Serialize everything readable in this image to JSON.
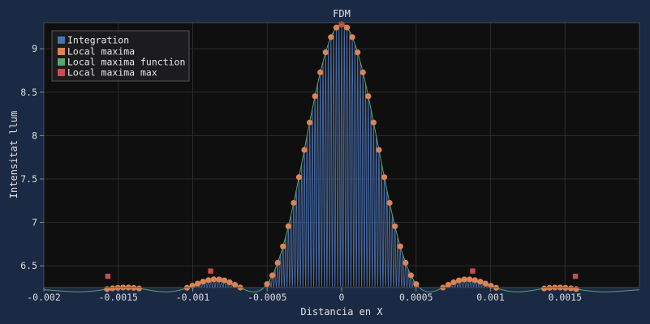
{
  "chart_data": {
    "type": "line",
    "title": "FDM",
    "xlabel": "Distancia en X",
    "ylabel": "Intensitat llum",
    "xlim": [
      -0.002,
      0.002
    ],
    "ylim": [
      6.25,
      9.3
    ],
    "x_ticks": [
      -0.002,
      -0.0015,
      -0.001,
      -0.0005,
      0,
      0.0005,
      0.001,
      0.0015
    ],
    "x_tick_labels": [
      "-0.002",
      "-0.0015",
      "-0.001",
      "-0.0005",
      "0",
      "0.0005",
      "0.001",
      "0.0015"
    ],
    "y_ticks": [
      6.5,
      7,
      7.5,
      8,
      8.5,
      9
    ],
    "y_tick_labels": [
      "6.5",
      "7",
      "7.5",
      "8",
      "8.5",
      "9"
    ],
    "grid": true,
    "legend_position": "top-left",
    "envelope": {
      "peak_x": 0,
      "peak_y": 9.28,
      "baseline_y": 6.2,
      "first_zero_x": 0.00059,
      "fringe_period_x": 1.79e-05
    },
    "series": [
      {
        "name": "Integration",
        "color": "#4c72b0",
        "style": "oscillation"
      },
      {
        "name": "Local maxima",
        "color": "#dd8452",
        "style": "markers"
      },
      {
        "name": "Local maxima function",
        "color": "#55a868",
        "style": "line"
      },
      {
        "name": "Local maxima max",
        "color": "#c44e52",
        "style": "markers",
        "points": [
          [
            -0.00157,
            6.38
          ],
          [
            -0.00088,
            6.44
          ],
          [
            0,
            9.28
          ],
          [
            0.00088,
            6.44
          ],
          [
            0.00157,
            6.38
          ]
        ]
      }
    ]
  }
}
